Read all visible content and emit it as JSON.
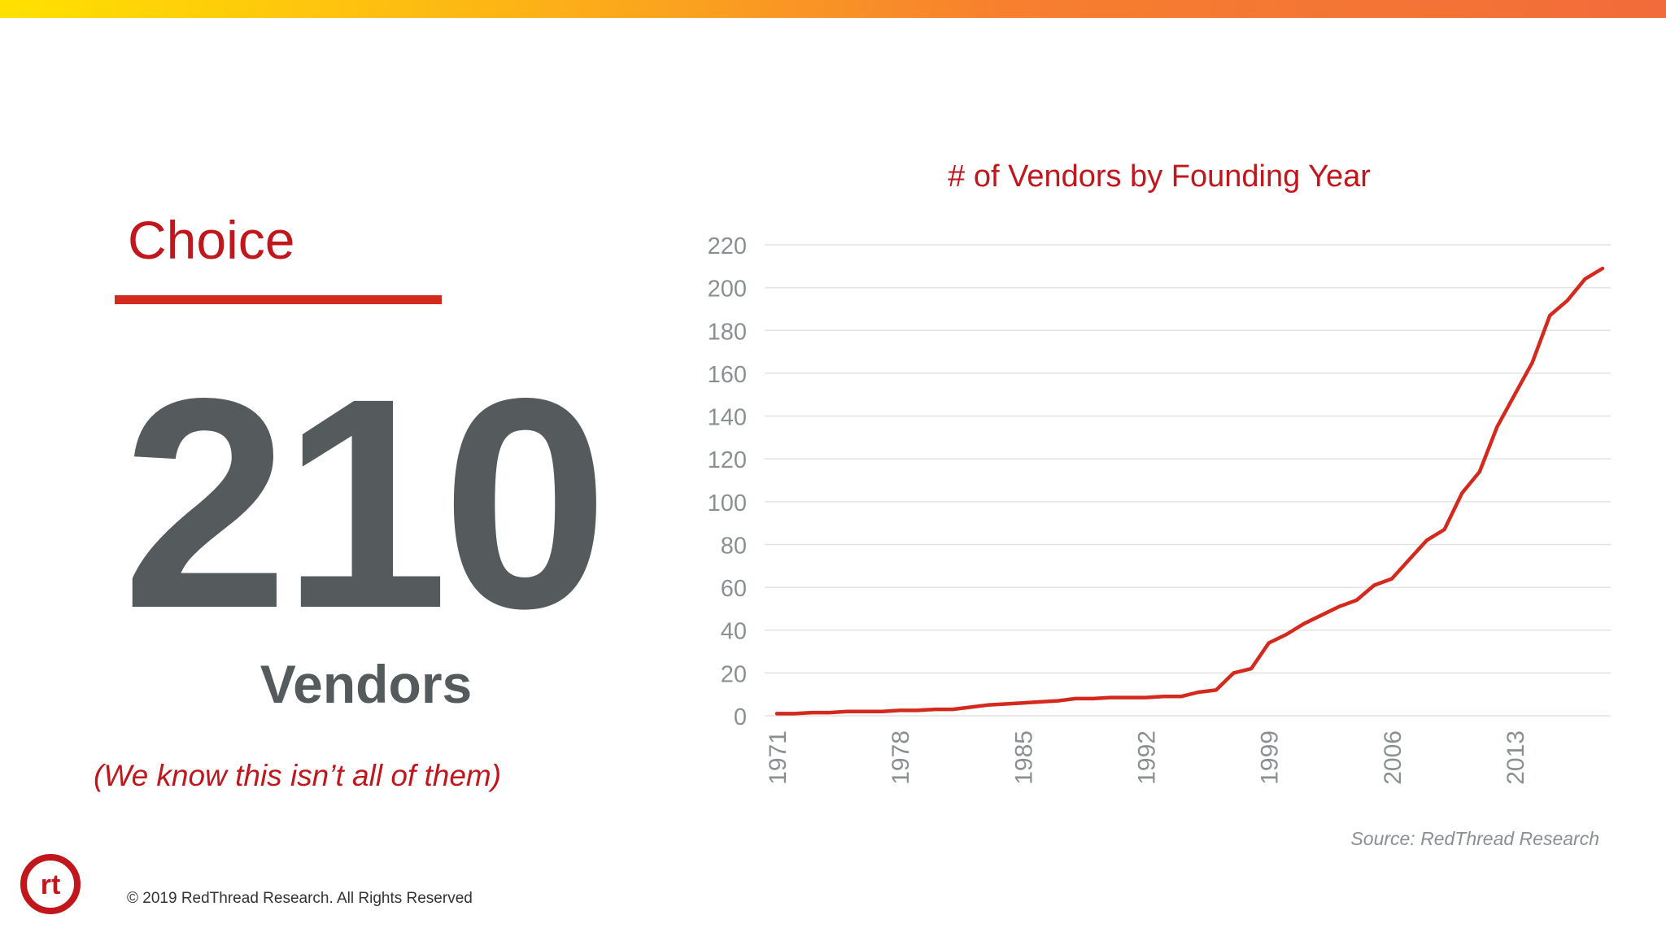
{
  "slide": {
    "heading": "Choice",
    "big_number": "210",
    "big_number_unit": "Vendors",
    "caveat": "(We know this isn’t all of them)",
    "source": "Source: RedThread Research",
    "copyright": "© 2019 RedThread Research. All Rights Reserved",
    "logo_text": "rt"
  },
  "colors": {
    "accent_red": "#c0161c",
    "line_red": "#d42a1e",
    "number_gray": "#555b5c",
    "axis_gray": "#8a8f91",
    "grid_gray": "#e3e3e3",
    "top_bar_gradient": [
      "#ffe100",
      "#fdb515",
      "#f7802e",
      "#f26b3a"
    ]
  },
  "chart_data": {
    "type": "line",
    "title": "# of Vendors by Founding Year",
    "xlabel": "",
    "ylabel": "",
    "xlim": [
      1971,
      2018
    ],
    "ylim": [
      0,
      220
    ],
    "y_ticks": [
      0,
      20,
      40,
      60,
      80,
      100,
      120,
      140,
      160,
      180,
      200,
      220
    ],
    "x_ticks": [
      "1971",
      "1978",
      "1985",
      "1992",
      "1999",
      "2006",
      "2013"
    ],
    "grid": true,
    "legend": "none",
    "series": [
      {
        "x": [
          1971,
          1972,
          1973,
          1974,
          1975,
          1976,
          1977,
          1978,
          1979,
          1980,
          1981,
          1982,
          1983,
          1984,
          1985,
          1986,
          1987,
          1988,
          1989,
          1990,
          1991,
          1992,
          1993,
          1994,
          1995,
          1996,
          1997,
          1998,
          1999,
          2000,
          2001,
          2002,
          2003,
          2004,
          2005,
          2006,
          2007,
          2008,
          2009,
          2010,
          2011,
          2012,
          2013,
          2014,
          2015,
          2016,
          2017,
          2018
        ],
        "values": [
          1,
          1,
          1.5,
          1.5,
          2,
          2,
          2,
          2.5,
          2.5,
          3,
          3,
          4,
          5,
          5.5,
          6,
          6.5,
          7,
          8,
          8,
          8.5,
          8.5,
          8.5,
          9,
          9,
          11,
          12,
          20,
          22,
          34,
          38,
          43,
          47,
          51,
          54,
          61,
          64,
          73,
          82,
          87,
          104,
          114,
          135,
          150,
          165,
          187,
          194,
          204,
          209
        ]
      }
    ]
  }
}
